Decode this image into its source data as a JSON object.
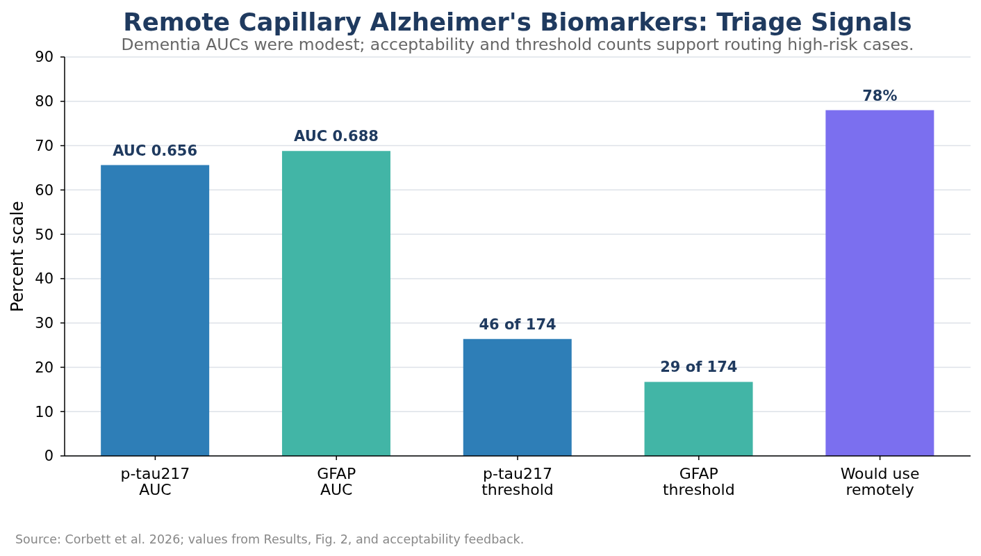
{
  "chart_data": {
    "type": "bar",
    "title": "Remote Capillary Alzheimer's Biomarkers: Triage Signals",
    "subtitle": "Dementia AUCs were modest; acceptability and threshold counts support routing high-risk cases.",
    "ylabel": "Percent scale",
    "annotations": [
      "Source: Corbett et al. 2026; values from Results, Fig. 2, and acceptability feedback.",
      {
        "text": "46 of 174",
        "x": "p-tau217\nthreshold",
        "y": 26.4
      },
      {
        "text": "29 of 174",
        "x": "GFAP\nthreshold",
        "y": 16.7
      }
    ],
    "categories": [
      "p-tau217\nAUC",
      "GFAP\nAUC",
      "p-tau217\nthreshold",
      "GFAP\nthreshold",
      "Would use\nremotely"
    ],
    "values": [
      65.6,
      68.8,
      26.4,
      16.7,
      78
    ],
    "colors": [
      "#2e7eb7",
      "#42b5a6",
      "#2e7eb7",
      "#42b5a6",
      "#7b6fef"
    ],
    "value_labels": [
      "AUC 0.656",
      "AUC 0.688",
      null,
      null,
      "78%"
    ],
    "ylim": [
      0,
      90
    ],
    "yticks": [
      0,
      10,
      20,
      30,
      40,
      50,
      60,
      70,
      80,
      90
    ],
    "grid": "y"
  }
}
